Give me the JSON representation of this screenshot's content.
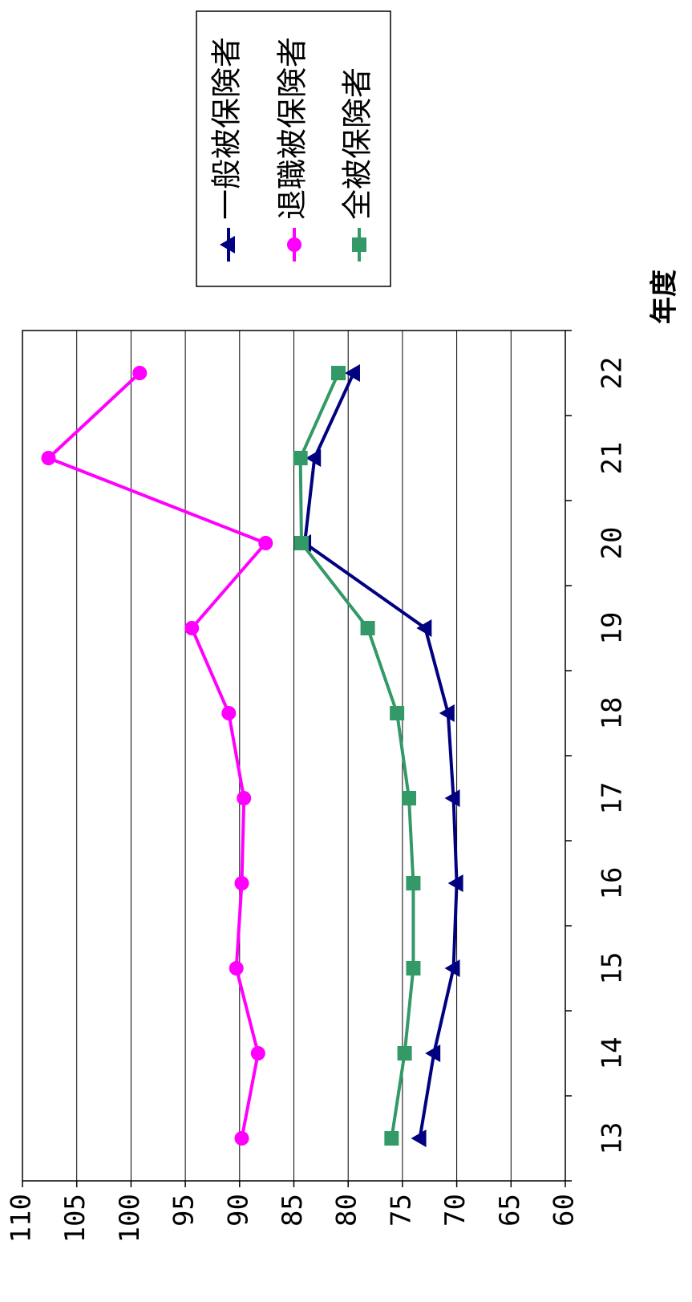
{
  "chart_data": {
    "type": "line",
    "orientation": "rotated-90",
    "xlabel": "年度",
    "ylabel": "",
    "title": "",
    "categories": [
      "13",
      "14",
      "15",
      "16",
      "17",
      "18",
      "19",
      "20",
      "21",
      "22"
    ],
    "ylim": [
      60,
      110
    ],
    "yticks": [
      "60",
      "65",
      "70",
      "75",
      "80",
      "85",
      "90",
      "95",
      "100",
      "105",
      "110"
    ],
    "grid": true,
    "legend_position": "top-right",
    "series": [
      {
        "name": "一般被保険者",
        "color": "#000080",
        "marker": "triangle",
        "values": [
          73.4,
          72.1,
          70.3,
          70.0,
          70.3,
          70.8,
          72.9,
          84.0,
          83.1,
          79.5
        ]
      },
      {
        "name": "退職被保険者",
        "color": "#ff00ff",
        "marker": "circle",
        "values": [
          89.8,
          88.3,
          90.3,
          89.8,
          89.6,
          91.0,
          94.4,
          87.6,
          107.6,
          99.2
        ]
      },
      {
        "name": "全被保険者",
        "color": "#339966",
        "marker": "square",
        "values": [
          76.0,
          74.8,
          74.0,
          74.0,
          74.4,
          75.5,
          78.2,
          84.3,
          84.4,
          80.9
        ]
      }
    ]
  }
}
